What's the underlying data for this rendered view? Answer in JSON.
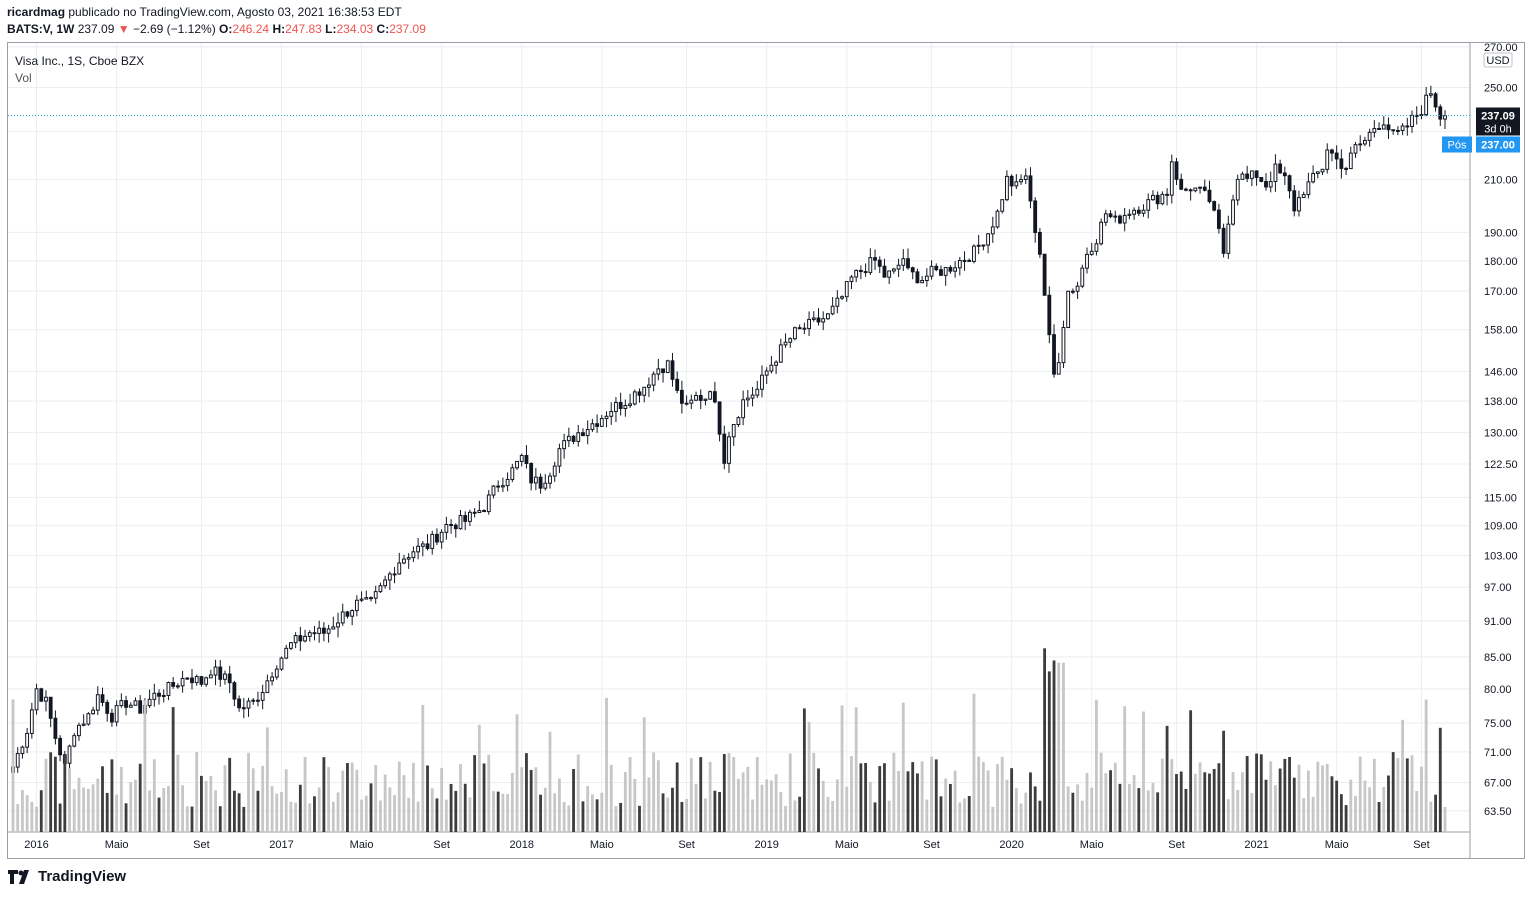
{
  "header": {
    "author": "ricardmag",
    "published": "publicado no TradingView.com, Agosto 03, 2021 16:38:53 EDT",
    "symbol": "BATS:V, 1W",
    "last": "237.09",
    "change": "−2.69 (−1.12%)",
    "o_label": "O:",
    "o_val": "246.24",
    "h_label": "H:",
    "h_val": "247.83",
    "l_label": "L:",
    "l_val": "234.03",
    "c_label": "C:",
    "c_val": "237.09"
  },
  "legend": {
    "title": "Visa Inc., 1S, Cboe BZX",
    "vol": "Vol"
  },
  "brand": "TradingView",
  "colors": {
    "candle_up": "#ffffff",
    "candle_down": "#131722",
    "vol_up": "#c7c7c7",
    "vol_down": "#3d3d3d",
    "price_line": "#26a6d9",
    "pos_badge": "#2196f3"
  },
  "chart_data": {
    "type": "candlestick",
    "title": "Visa Inc., 1S, Cboe BZX",
    "currency": "USD",
    "y_scale": "log",
    "ylim": [
      61,
      272
    ],
    "y_ticks": [
      270,
      250,
      230,
      210,
      190,
      180,
      170,
      158,
      146,
      138,
      130,
      122.5,
      115,
      109,
      103,
      97,
      91,
      85,
      80,
      75,
      71,
      67,
      63.5
    ],
    "y_tick_labels": [
      "270.00",
      "250.00",
      "230.00",
      "210.00",
      "190.00",
      "180.00",
      "170.00",
      "158.00",
      "146.00",
      "138.00",
      "130.00",
      "122.50",
      "115.00",
      "109.00",
      "103.00",
      "97.00",
      "91.00",
      "85.00",
      "80.00",
      "75.00",
      "71.00",
      "67.00",
      "63.50"
    ],
    "x_labels": [
      "2016",
      "Maio",
      "Set",
      "2017",
      "Maio",
      "Set",
      "2018",
      "Maio",
      "Set",
      "2019",
      "Maio",
      "Set",
      "2020",
      "Maio",
      "Set",
      "2021",
      "Maio",
      "Set"
    ],
    "x_label_weeks": [
      5,
      22,
      40,
      57,
      74,
      91,
      108,
      125,
      143,
      160,
      177,
      195,
      212,
      229,
      247,
      264,
      281,
      299
    ],
    "total_weeks": 304,
    "last_price_label": "237.09",
    "countdown": "3d 0h",
    "post_label": "Pós",
    "post_price": "237.00",
    "anchors": [
      [
        0,
        69
      ],
      [
        3,
        74
      ],
      [
        5,
        80
      ],
      [
        7,
        78
      ],
      [
        9,
        73
      ],
      [
        11,
        69
      ],
      [
        13,
        74
      ],
      [
        16,
        76
      ],
      [
        18,
        79
      ],
      [
        21,
        76
      ],
      [
        24,
        78
      ],
      [
        27,
        77
      ],
      [
        30,
        79
      ],
      [
        33,
        80
      ],
      [
        37,
        82
      ],
      [
        40,
        81
      ],
      [
        42,
        83
      ],
      [
        46,
        81
      ],
      [
        48,
        77
      ],
      [
        51,
        78
      ],
      [
        53,
        80
      ],
      [
        56,
        84
      ],
      [
        59,
        87
      ],
      [
        63,
        89
      ],
      [
        66,
        89
      ],
      [
        70,
        92
      ],
      [
        73,
        94
      ],
      [
        76,
        94
      ],
      [
        79,
        98
      ],
      [
        82,
        102
      ],
      [
        85,
        104
      ],
      [
        88,
        105
      ],
      [
        92,
        109
      ],
      [
        96,
        110
      ],
      [
        100,
        113
      ],
      [
        103,
        118
      ],
      [
        106,
        121
      ],
      [
        108,
        124
      ],
      [
        110,
        119
      ],
      [
        112,
        118
      ],
      [
        114,
        121
      ],
      [
        116,
        126
      ],
      [
        120,
        130
      ],
      [
        124,
        133
      ],
      [
        127,
        136
      ],
      [
        130,
        138
      ],
      [
        134,
        142
      ],
      [
        137,
        147
      ],
      [
        139,
        148
      ],
      [
        141,
        140
      ],
      [
        143,
        136
      ],
      [
        145,
        139
      ],
      [
        147,
        139
      ],
      [
        148,
        142
      ],
      [
        150,
        131
      ],
      [
        151,
        124
      ],
      [
        152,
        130
      ],
      [
        155,
        138
      ],
      [
        158,
        141
      ],
      [
        160,
        146
      ],
      [
        163,
        152
      ],
      [
        166,
        157
      ],
      [
        170,
        160
      ],
      [
        173,
        162
      ],
      [
        176,
        168
      ],
      [
        178,
        174
      ],
      [
        181,
        178
      ],
      [
        183,
        180
      ],
      [
        185,
        175
      ],
      [
        187,
        176
      ],
      [
        189,
        181
      ],
      [
        190,
        176
      ],
      [
        193,
        174
      ],
      [
        195,
        176
      ],
      [
        198,
        177
      ],
      [
        201,
        180
      ],
      [
        204,
        183
      ],
      [
        207,
        190
      ],
      [
        209,
        197
      ],
      [
        211,
        210
      ],
      [
        213,
        207
      ],
      [
        215,
        212
      ],
      [
        216,
        200
      ],
      [
        218,
        183
      ],
      [
        220,
        155
      ],
      [
        221,
        145
      ],
      [
        222,
        150
      ],
      [
        223,
        160
      ],
      [
        224,
        170
      ],
      [
        226,
        172
      ],
      [
        228,
        183
      ],
      [
        230,
        188
      ],
      [
        232,
        197
      ],
      [
        234,
        194
      ],
      [
        237,
        198
      ],
      [
        240,
        200
      ],
      [
        243,
        203
      ],
      [
        245,
        205
      ],
      [
        246,
        218
      ],
      [
        248,
        205
      ],
      [
        250,
        207
      ],
      [
        252,
        205
      ],
      [
        254,
        202
      ],
      [
        256,
        190
      ],
      [
        257,
        183
      ],
      [
        258,
        195
      ],
      [
        260,
        212
      ],
      [
        262,
        210
      ],
      [
        264,
        212
      ],
      [
        266,
        208
      ],
      [
        268,
        214
      ],
      [
        270,
        210
      ],
      [
        272,
        199
      ],
      [
        274,
        206
      ],
      [
        276,
        210
      ],
      [
        278,
        215
      ],
      [
        279,
        223
      ],
      [
        281,
        218
      ],
      [
        283,
        215
      ],
      [
        285,
        223
      ],
      [
        287,
        226
      ],
      [
        289,
        232
      ],
      [
        291,
        235
      ],
      [
        293,
        228
      ],
      [
        295,
        230
      ],
      [
        297,
        235
      ],
      [
        299,
        240
      ],
      [
        301,
        248
      ],
      [
        303,
        237
      ]
    ],
    "volume_note": "Weekly volume histogram; bar shading follows candle direction",
    "volume_spikes_weeks": [
      219,
      220,
      221,
      222,
      223
    ]
  }
}
